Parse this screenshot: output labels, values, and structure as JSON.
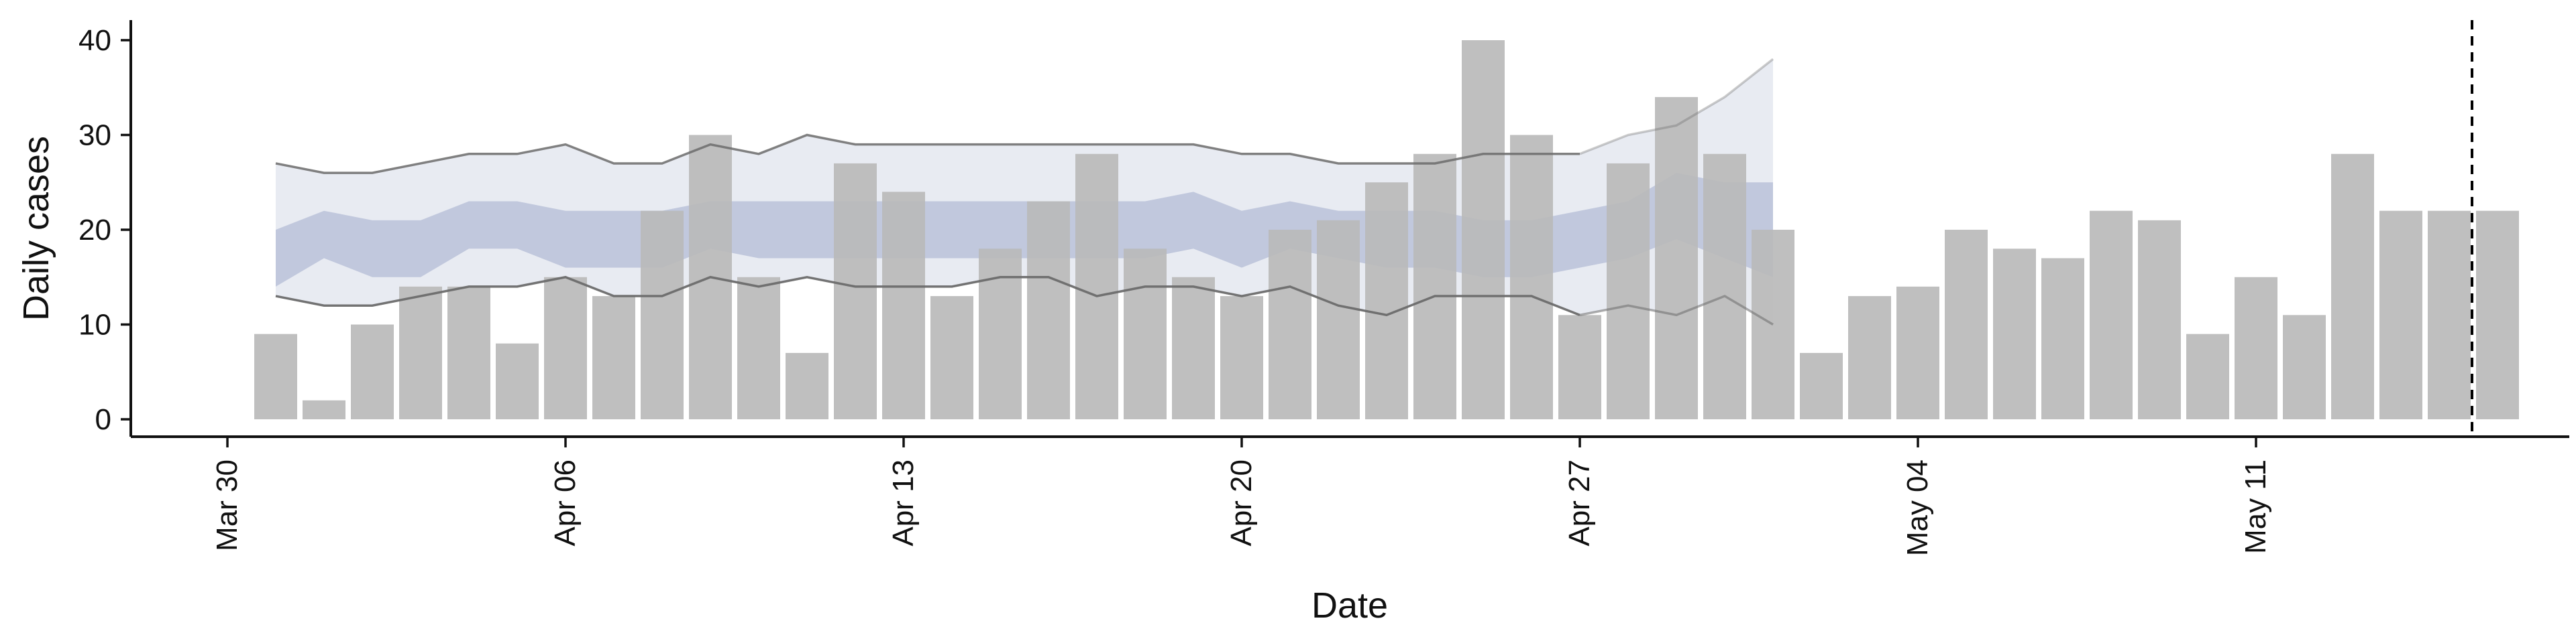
{
  "chart_data": {
    "type": "bar",
    "title": "",
    "xlabel": "Date",
    "ylabel": "Daily cases",
    "ylim": [
      0,
      42
    ],
    "grid": false,
    "x_ticks": [
      "Mar 30",
      "Apr 06",
      "Apr 13",
      "Apr 20",
      "Apr 27",
      "May 04",
      "May 11"
    ],
    "y_ticks": [
      0,
      10,
      20,
      30,
      40
    ],
    "bars": {
      "dates": [
        "2020-03-31",
        "2020-04-01",
        "2020-04-02",
        "2020-04-03",
        "2020-04-04",
        "2020-04-05",
        "2020-04-06",
        "2020-04-07",
        "2020-04-08",
        "2020-04-09",
        "2020-04-10",
        "2020-04-11",
        "2020-04-12",
        "2020-04-13",
        "2020-04-14",
        "2020-04-15",
        "2020-04-16",
        "2020-04-17",
        "2020-04-18",
        "2020-04-19",
        "2020-04-20",
        "2020-04-21",
        "2020-04-22",
        "2020-04-23",
        "2020-04-24",
        "2020-04-25",
        "2020-04-26",
        "2020-04-27",
        "2020-04-28",
        "2020-04-29",
        "2020-04-30",
        "2020-05-01",
        "2020-05-02",
        "2020-05-03",
        "2020-05-04",
        "2020-05-05",
        "2020-05-06",
        "2020-05-07",
        "2020-05-08",
        "2020-05-09",
        "2020-05-10",
        "2020-05-11",
        "2020-05-12",
        "2020-05-13",
        "2020-05-14",
        "2020-05-15",
        "2020-05-16"
      ],
      "values": [
        9,
        2,
        10,
        14,
        14,
        8,
        15,
        13,
        22,
        30,
        15,
        7,
        27,
        24,
        13,
        18,
        23,
        28,
        18,
        15,
        13,
        20,
        21,
        25,
        28,
        40,
        30,
        11,
        27,
        34,
        28,
        20,
        7,
        13,
        14,
        20,
        18,
        17,
        22,
        21,
        9,
        15,
        11,
        28,
        22,
        22,
        22
      ],
      "color": "#bababa"
    },
    "band": {
      "dates": [
        "2020-03-31",
        "2020-04-01",
        "2020-04-02",
        "2020-04-03",
        "2020-04-04",
        "2020-04-05",
        "2020-04-06",
        "2020-04-07",
        "2020-04-08",
        "2020-04-09",
        "2020-04-10",
        "2020-04-11",
        "2020-04-12",
        "2020-04-13",
        "2020-04-14",
        "2020-04-15",
        "2020-04-16",
        "2020-04-17",
        "2020-04-18",
        "2020-04-19",
        "2020-04-20",
        "2020-04-21",
        "2020-04-22",
        "2020-04-23",
        "2020-04-24",
        "2020-04-25",
        "2020-04-26",
        "2020-04-27",
        "2020-04-28",
        "2020-04-29",
        "2020-04-30",
        "2020-05-01"
      ],
      "outer_upper": [
        27,
        26,
        26,
        27,
        28,
        28,
        29,
        27,
        27,
        29,
        28,
        30,
        29,
        29,
        29,
        29,
        29,
        29,
        29,
        29,
        28,
        28,
        27,
        27,
        27,
        28,
        28,
        28,
        30,
        31,
        34,
        38
      ],
      "outer_lower": [
        13,
        12,
        12,
        13,
        14,
        14,
        15,
        13,
        13,
        15,
        14,
        15,
        14,
        14,
        14,
        15,
        15,
        13,
        14,
        14,
        13,
        14,
        12,
        11,
        13,
        13,
        13,
        11,
        12,
        11,
        13,
        10
      ],
      "inner_upper": [
        20,
        22,
        21,
        21,
        23,
        23,
        22,
        22,
        22,
        23,
        23,
        23,
        23,
        23,
        23,
        23,
        23,
        23,
        23,
        24,
        22,
        23,
        22,
        22,
        22,
        21,
        21,
        22,
        23,
        26,
        25,
        25
      ],
      "inner_lower": [
        14,
        17,
        15,
        15,
        18,
        18,
        16,
        16,
        16,
        18,
        17,
        17,
        17,
        17,
        17,
        17,
        17,
        17,
        17,
        18,
        16,
        18,
        17,
        16,
        16,
        15,
        15,
        16,
        17,
        19,
        17,
        15
      ],
      "outer_color": "#d6dae8",
      "inner_color": "#a6b1cf",
      "line_color": "#6b6b6b",
      "forecast_start": "2020-04-27"
    },
    "reference_line": {
      "date": "2020-05-15",
      "style": "dashed",
      "color": "#000000"
    },
    "x_range": [
      "2020-03-28",
      "2020-05-22"
    ]
  }
}
